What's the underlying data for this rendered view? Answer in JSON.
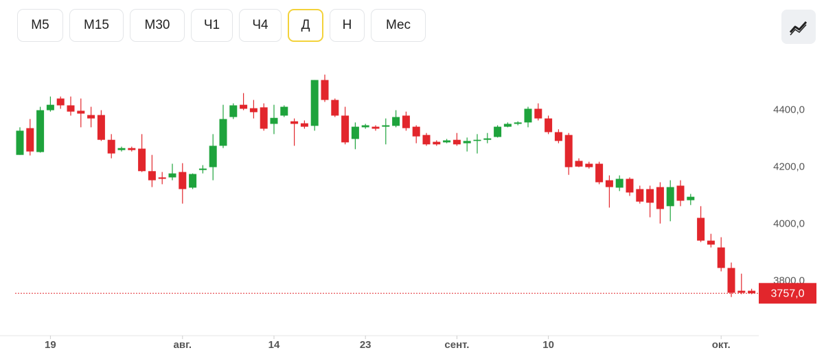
{
  "toolbar": {
    "buttons": [
      "М5",
      "М15",
      "М30",
      "Ч1",
      "Ч4",
      "Д",
      "Н",
      "Мес"
    ],
    "active": "Д"
  },
  "chart_data": {
    "type": "candlestick",
    "categories": [
      null,
      null,
      null,
      "19",
      null,
      null,
      null,
      null,
      null,
      null,
      null,
      null,
      null,
      null,
      null,
      null,
      "авг.",
      null,
      null,
      null,
      null,
      null,
      null,
      null,
      null,
      "14",
      null,
      null,
      null,
      null,
      null,
      null,
      null,
      null,
      "23",
      null,
      null,
      null,
      null,
      null,
      null,
      null,
      null,
      "сент.",
      null,
      null,
      null,
      null,
      null,
      null,
      null,
      null,
      "10",
      null,
      null,
      null,
      null,
      null,
      null,
      null,
      null,
      null,
      null,
      null,
      null,
      null,
      null,
      null,
      null,
      "окт.",
      null,
      null,
      null
    ],
    "open": [
      4243,
      4337,
      4253,
      4400,
      4441,
      4417,
      4398,
      4383,
      4383,
      4296,
      4260,
      4267,
      4265,
      4186,
      4164,
      4164,
      4183,
      4128,
      4190,
      4200,
      4275,
      4376,
      4419,
      4407,
      4410,
      4352,
      4381,
      4361,
      4354,
      4345,
      4506,
      4436,
      4381,
      4299,
      4340,
      4342,
      4342,
      4345,
      4381,
      4342,
      4313,
      4289,
      4287,
      4296,
      4284,
      4292,
      4296,
      4306,
      4342,
      4352,
      4357,
      4405,
      4371,
      4323,
      4313,
      4222,
      4212,
      4212,
      4154,
      4128,
      4159,
      4123,
      4123,
      4130,
      4063,
      4135,
      4084,
      4022,
      3942,
      3918,
      3846,
      3766,
      3766
    ],
    "high": [
      4340,
      4369,
      4412,
      4448,
      4448,
      4448,
      4441,
      4412,
      4400,
      4316,
      4272,
      4272,
      4316,
      4243,
      4183,
      4212,
      4214,
      4178,
      4207,
      4316,
      4419,
      4424,
      4460,
      4436,
      4424,
      4419,
      4417,
      4371,
      4364,
      4506,
      4525,
      4441,
      4412,
      4357,
      4352,
      4347,
      4371,
      4400,
      4395,
      4347,
      4320,
      4294,
      4299,
      4320,
      4304,
      4316,
      4320,
      4347,
      4357,
      4361,
      4412,
      4424,
      4381,
      4333,
      4320,
      4231,
      4219,
      4219,
      4171,
      4171,
      4164,
      4135,
      4135,
      4147,
      4154,
      4154,
      4106,
      4063,
      3966,
      3954,
      3865,
      3826,
      3773
    ],
    "low": [
      4243,
      4241,
      4251,
      4395,
      4405,
      4381,
      4340,
      4340,
      4292,
      4231,
      4255,
      4255,
      4183,
      4130,
      4140,
      4154,
      4072,
      4123,
      4178,
      4154,
      4267,
      4369,
      4400,
      4371,
      4328,
      4316,
      4376,
      4275,
      4335,
      4328,
      4429,
      4376,
      4280,
      4263,
      4335,
      4328,
      4280,
      4340,
      4328,
      4284,
      4275,
      4275,
      4284,
      4275,
      4255,
      4248,
      4284,
      4304,
      4340,
      4347,
      4340,
      4364,
      4316,
      4284,
      4173,
      4200,
      4195,
      4140,
      4058,
      4116,
      4099,
      4072,
      4024,
      4002,
      4010,
      4063,
      4067,
      3937,
      3918,
      3834,
      3744,
      3754,
      3754
    ],
    "close": [
      4328,
      4255,
      4400,
      4419,
      4417,
      4395,
      4388,
      4371,
      4296,
      4248,
      4267,
      4260,
      4186,
      4154,
      4159,
      4178,
      4123,
      4176,
      4195,
      4275,
      4369,
      4417,
      4405,
      4393,
      4335,
      4373,
      4412,
      4352,
      4342,
      4506,
      4436,
      4381,
      4287,
      4342,
      4347,
      4335,
      4347,
      4376,
      4337,
      4308,
      4280,
      4280,
      4294,
      4280,
      4292,
      4296,
      4301,
      4342,
      4352,
      4357,
      4405,
      4371,
      4323,
      4292,
      4200,
      4202,
      4200,
      4147,
      4130,
      4159,
      4111,
      4079,
      4075,
      4053,
      4130,
      4082,
      4096,
      3942,
      3928,
      3846,
      3759,
      3759,
      3757
    ],
    "up_color": "#1ea33c",
    "down_color": "#e2262c",
    "ylim": [
      3630,
      4570
    ],
    "yticks": [
      {
        "value": 3800,
        "label": "3800,0"
      },
      {
        "value": 4000,
        "label": "4000,0"
      },
      {
        "value": 4200,
        "label": "4200,0"
      },
      {
        "value": 4400,
        "label": "4400,0"
      }
    ],
    "last_price": {
      "value": 3757,
      "label": "3757,0",
      "color": "#e2262c"
    }
  }
}
